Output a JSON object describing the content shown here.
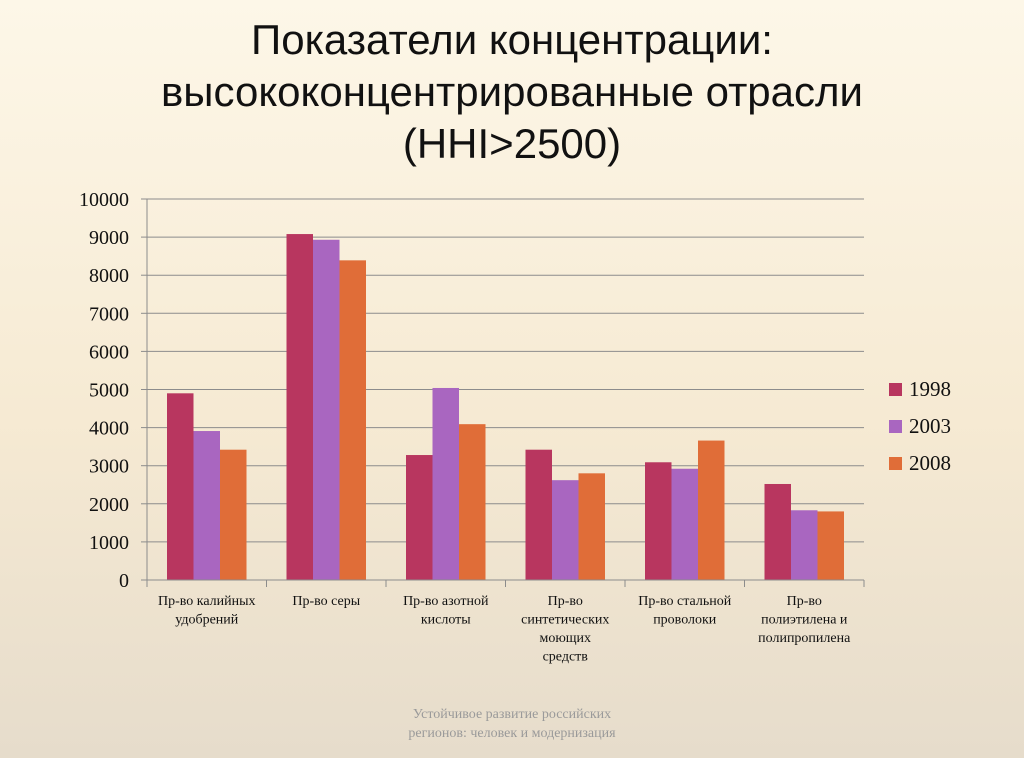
{
  "title_lines": [
    "Показатели концентрации:",
    "высококонцентрированные отрасли",
    "(HHI>2500)"
  ],
  "footer_lines": [
    "Устойчивое развитие российских",
    "регионов: человек и модернизация"
  ],
  "chart_data": {
    "type": "bar",
    "title": "Показатели концентрации: высококонцентрированные отрасли (HHI>2500)",
    "categories": [
      [
        "Пр-во калийных",
        "удобрений"
      ],
      [
        "Пр-во серы"
      ],
      [
        "Пр-во азотной",
        "кислоты"
      ],
      [
        "Пр-во",
        "синтетических",
        "моющих",
        "средств"
      ],
      [
        "Пр-во стальной",
        "проволоки"
      ],
      [
        "Пр-во",
        "полиэтилена и",
        "полипропилена"
      ]
    ],
    "series": [
      {
        "name": "1998",
        "color": "#b8365f",
        "values": [
          4900,
          9080,
          3280,
          3420,
          3090,
          2520
        ]
      },
      {
        "name": "2003",
        "color": "#a966c0",
        "values": [
          3910,
          8930,
          5040,
          2620,
          2920,
          1830
        ]
      },
      {
        "name": "2008",
        "color": "#e06d38",
        "values": [
          3420,
          8390,
          4090,
          2800,
          3660,
          1800
        ]
      }
    ],
    "ylim": [
      0,
      10000
    ],
    "yticks": [
      0,
      1000,
      2000,
      3000,
      4000,
      5000,
      6000,
      7000,
      8000,
      9000,
      10000
    ],
    "grid": true,
    "legend": "right",
    "xlabel": "",
    "ylabel": ""
  }
}
